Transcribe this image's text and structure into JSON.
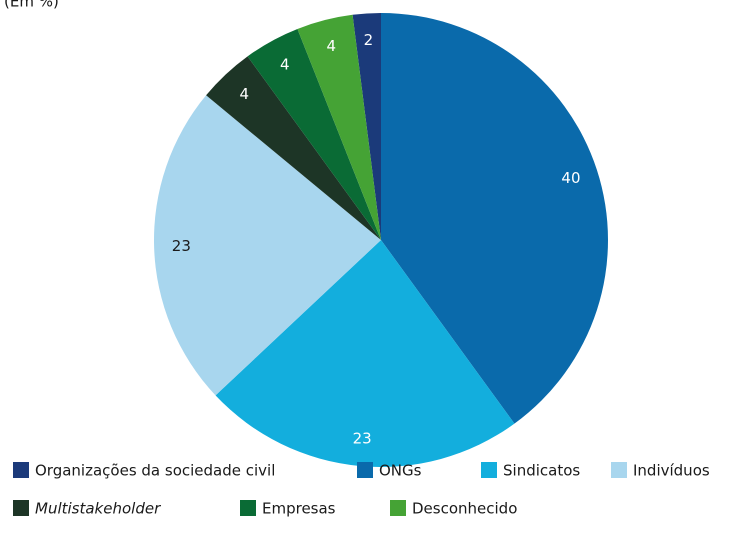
{
  "chart_data": {
    "type": "pie",
    "subtitle": "(Em %)",
    "categories": [
      "Organizações da sociedade civil",
      "ONGs",
      "Sindicatos",
      "Indivíduos",
      "Multistakeholder",
      "Empresas",
      "Desconhecido"
    ],
    "values": [
      2,
      40,
      23,
      23,
      4,
      4,
      4
    ],
    "colors": [
      "#1b3a7a",
      "#0a6aab",
      "#13aedd",
      "#a8d6ee",
      "#1d3526",
      "#0a6b35",
      "#45a335"
    ],
    "legend": "bottom"
  }
}
